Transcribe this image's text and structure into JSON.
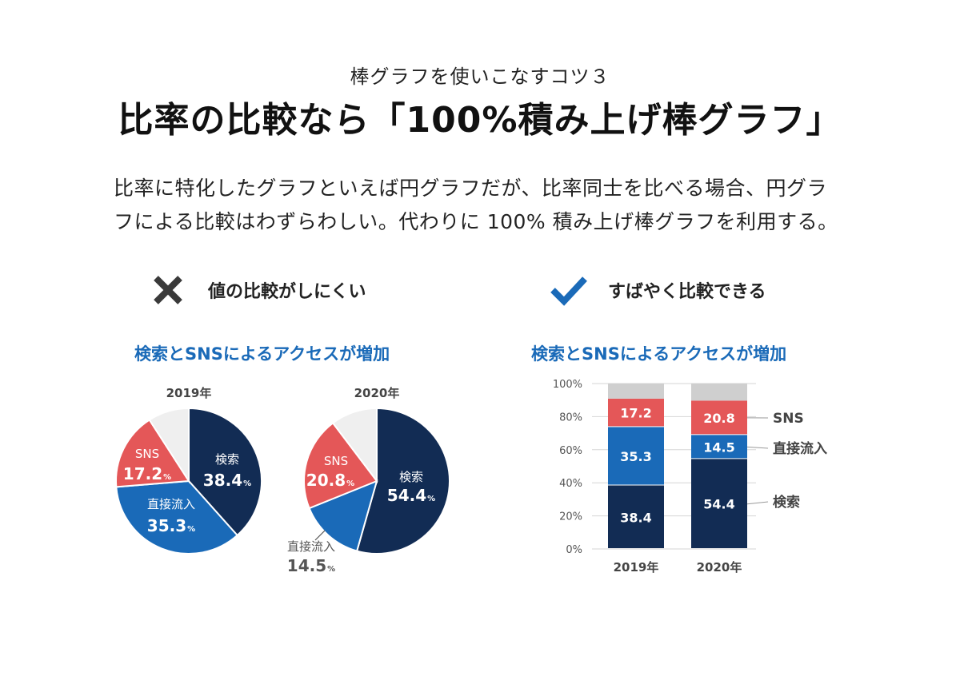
{
  "header": {
    "subtitle": "棒グラフを使いこなすコツ３",
    "title": "比率の比較なら「100%積み上げ棒グラフ」"
  },
  "paragraph": {
    "line1": "比率に特化したグラフといえば円グラフだが、比率同士を比べる場合、円グラ",
    "line2": "フによる比較はわずらわしい。代わりに 100% 積み上げ棒グラフを利用する。"
  },
  "bad": {
    "label": "値の比較がしにくい",
    "icon": "cross-icon",
    "color": "#3a3a3a"
  },
  "good": {
    "label": "すばやく比較できる",
    "icon": "check-icon",
    "color": "#1a6ab8"
  },
  "colors": {
    "search": "#122c54",
    "direct": "#1a6ab8",
    "sns": "#e45758",
    "other": "#efefef",
    "other_bar": "#cfcfcf"
  },
  "chart_data": [
    {
      "type": "pie",
      "title": "検索とSNSによるアクセスが増加",
      "pies": [
        {
          "label": "2019年",
          "slices": [
            {
              "name": "検索",
              "value": 38.4
            },
            {
              "name": "直接流入",
              "value": 35.3
            },
            {
              "name": "SNS",
              "value": 17.2
            },
            {
              "name": "",
              "value": 9.1
            }
          ]
        },
        {
          "label": "2020年",
          "slices": [
            {
              "name": "検索",
              "value": 54.4
            },
            {
              "name": "直接流入",
              "value": 14.5
            },
            {
              "name": "SNS",
              "value": 20.8
            },
            {
              "name": "",
              "value": 10.3
            }
          ]
        }
      ],
      "unit": "%"
    },
    {
      "type": "bar",
      "stacked": true,
      "title": "検索とSNSによるアクセスが増加",
      "categories": [
        "2019年",
        "2020年"
      ],
      "series": [
        {
          "name": "検索",
          "values": [
            38.4,
            54.4
          ]
        },
        {
          "name": "直接流入",
          "values": [
            35.3,
            14.5
          ]
        },
        {
          "name": "SNS",
          "values": [
            17.2,
            20.8
          ]
        },
        {
          "name": "",
          "values": [
            9.1,
            10.3
          ]
        }
      ],
      "ylim": [
        0,
        100
      ],
      "yticks": [
        "0%",
        "20%",
        "40%",
        "60%",
        "80%",
        "100%"
      ],
      "legend_position": "right"
    }
  ]
}
